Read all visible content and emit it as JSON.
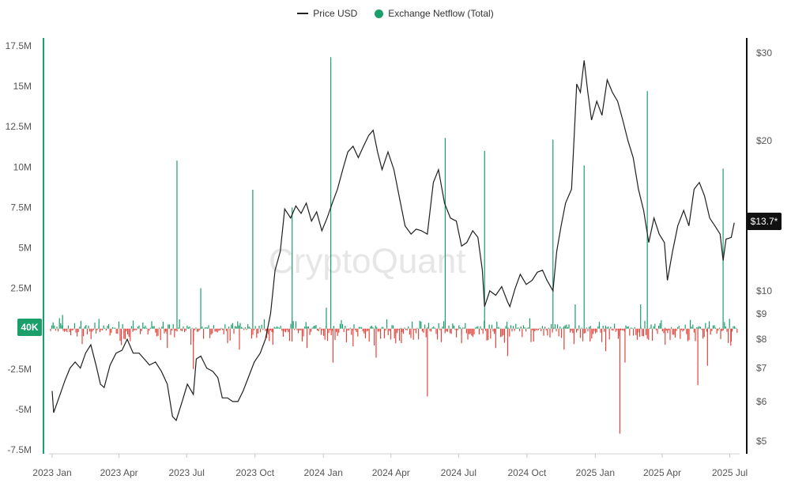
{
  "legend": {
    "price_label": "Price USD",
    "netflow_label": "Exchange Netflow (Total)"
  },
  "watermark": "CryptoQuant",
  "badges": {
    "left_value": "40K",
    "right_value": "$13.7*"
  },
  "colors": {
    "price_line": "#1f1f1f",
    "inflow": "#1a9e6a",
    "outflow": "#e2453c",
    "left_badge": "#1a9e6a",
    "right_badge": "#111111"
  },
  "chart_data": {
    "type": "line+bar",
    "x_ticks": [
      "2023 Jan",
      "2023 Apr",
      "2023 Jul",
      "2023 Oct",
      "2024 Jan",
      "2024 Apr",
      "2024 Jul",
      "2024 Oct",
      "2025 Jan",
      "2025 Apr",
      "2025 Jul"
    ],
    "y_left": {
      "label": "",
      "range": [
        -7500000,
        17500000
      ],
      "ticks": [
        "17.5M",
        "15M",
        "12.5M",
        "10M",
        "7.5M",
        "5M",
        "2.5M",
        "-2.5M",
        "-5M",
        "-7.5M"
      ],
      "tick_values": [
        17500000,
        15000000,
        12500000,
        10000000,
        7500000,
        5000000,
        2500000,
        -2500000,
        -5000000,
        -7500000
      ]
    },
    "y_right": {
      "label": "",
      "scale": "log",
      "range": [
        4.8,
        31
      ],
      "ticks": [
        "$30",
        "$20",
        "$10",
        "$9",
        "$8",
        "$7",
        "$6",
        "$5"
      ],
      "tick_values": [
        30,
        20,
        10,
        9,
        8,
        7,
        6,
        5
      ]
    },
    "series": [
      {
        "name": "Price USD",
        "kind": "line",
        "axis": "right",
        "points": [
          [
            "2023-01-01",
            6.3
          ],
          [
            "2023-01-03",
            5.7
          ],
          [
            "2023-01-10",
            6.1
          ],
          [
            "2023-01-18",
            6.6
          ],
          [
            "2023-01-25",
            7.0
          ],
          [
            "2023-02-01",
            7.2
          ],
          [
            "2023-02-08",
            7.0
          ],
          [
            "2023-02-15",
            7.5
          ],
          [
            "2023-02-22",
            7.8
          ],
          [
            "2023-03-01",
            7.1
          ],
          [
            "2023-03-07",
            6.5
          ],
          [
            "2023-03-12",
            6.4
          ],
          [
            "2023-03-20",
            7.1
          ],
          [
            "2023-03-28",
            7.5
          ],
          [
            "2023-04-05",
            7.6
          ],
          [
            "2023-04-12",
            8.0
          ],
          [
            "2023-04-20",
            7.5
          ],
          [
            "2023-04-28",
            7.5
          ],
          [
            "2023-05-05",
            7.3
          ],
          [
            "2023-05-12",
            7.1
          ],
          [
            "2023-05-20",
            7.2
          ],
          [
            "2023-05-28",
            6.9
          ],
          [
            "2023-06-05",
            6.5
          ],
          [
            "2023-06-12",
            5.6
          ],
          [
            "2023-06-17",
            5.5
          ],
          [
            "2023-06-25",
            6.0
          ],
          [
            "2023-07-02",
            6.5
          ],
          [
            "2023-07-10",
            6.2
          ],
          [
            "2023-07-14",
            7.3
          ],
          [
            "2023-07-20",
            7.4
          ],
          [
            "2023-07-28",
            7.0
          ],
          [
            "2023-08-05",
            6.9
          ],
          [
            "2023-08-12",
            6.7
          ],
          [
            "2023-08-18",
            6.1
          ],
          [
            "2023-08-25",
            6.1
          ],
          [
            "2023-09-01",
            6.0
          ],
          [
            "2023-09-08",
            6.0
          ],
          [
            "2023-09-15",
            6.3
          ],
          [
            "2023-09-22",
            6.7
          ],
          [
            "2023-09-30",
            7.2
          ],
          [
            "2023-10-08",
            7.5
          ],
          [
            "2023-10-15",
            8.0
          ],
          [
            "2023-10-22",
            9.0
          ],
          [
            "2023-10-28",
            11.0
          ],
          [
            "2023-11-04",
            12.0
          ],
          [
            "2023-11-10",
            14.6
          ],
          [
            "2023-11-18",
            14.0
          ],
          [
            "2023-11-25",
            14.8
          ],
          [
            "2023-12-02",
            14.3
          ],
          [
            "2023-12-09",
            15.0
          ],
          [
            "2023-12-16",
            13.8
          ],
          [
            "2023-12-23",
            14.4
          ],
          [
            "2023-12-30",
            13.2
          ],
          [
            "2024-01-06",
            14.0
          ],
          [
            "2024-01-13",
            15.0
          ],
          [
            "2024-01-20",
            16.0
          ],
          [
            "2024-01-27",
            17.5
          ],
          [
            "2024-02-03",
            19.0
          ],
          [
            "2024-02-10",
            19.5
          ],
          [
            "2024-02-17",
            18.5
          ],
          [
            "2024-02-24",
            19.5
          ],
          [
            "2024-03-02",
            20.5
          ],
          [
            "2024-03-08",
            21.0
          ],
          [
            "2024-03-14",
            19.0
          ],
          [
            "2024-03-20",
            17.5
          ],
          [
            "2024-03-28",
            19.0
          ],
          [
            "2024-04-05",
            17.5
          ],
          [
            "2024-04-13",
            15.2
          ],
          [
            "2024-04-20",
            13.5
          ],
          [
            "2024-04-28",
            13.0
          ],
          [
            "2024-05-05",
            13.3
          ],
          [
            "2024-05-12",
            13.2
          ],
          [
            "2024-05-20",
            13.0
          ],
          [
            "2024-05-28",
            16.5
          ],
          [
            "2024-06-04",
            17.5
          ],
          [
            "2024-06-12",
            15.0
          ],
          [
            "2024-06-20",
            14.0
          ],
          [
            "2024-06-28",
            13.8
          ],
          [
            "2024-07-05",
            12.3
          ],
          [
            "2024-07-12",
            12.5
          ],
          [
            "2024-07-20",
            13.2
          ],
          [
            "2024-07-27",
            12.8
          ],
          [
            "2024-08-02",
            11.0
          ],
          [
            "2024-08-05",
            9.3
          ],
          [
            "2024-08-12",
            10.0
          ],
          [
            "2024-08-20",
            9.8
          ],
          [
            "2024-08-28",
            10.2
          ],
          [
            "2024-09-05",
            9.5
          ],
          [
            "2024-09-08",
            9.3
          ],
          [
            "2024-09-15",
            10.1
          ],
          [
            "2024-09-22",
            10.8
          ],
          [
            "2024-09-30",
            10.3
          ],
          [
            "2024-10-08",
            10.5
          ],
          [
            "2024-10-15",
            10.9
          ],
          [
            "2024-10-22",
            11.0
          ],
          [
            "2024-10-28",
            10.5
          ],
          [
            "2024-11-05",
            10.0
          ],
          [
            "2024-11-10",
            12.0
          ],
          [
            "2024-11-16",
            13.5
          ],
          [
            "2024-11-22",
            15.0
          ],
          [
            "2024-11-30",
            16.0
          ],
          [
            "2024-12-04",
            21.0
          ],
          [
            "2024-12-07",
            26.0
          ],
          [
            "2024-12-12",
            25.0
          ],
          [
            "2024-12-17",
            29.0
          ],
          [
            "2024-12-22",
            25.0
          ],
          [
            "2024-12-27",
            22.0
          ],
          [
            "2025-01-03",
            24.0
          ],
          [
            "2025-01-10",
            22.5
          ],
          [
            "2025-01-17",
            26.5
          ],
          [
            "2025-01-24",
            25.0
          ],
          [
            "2025-01-31",
            24.0
          ],
          [
            "2025-02-07",
            22.0
          ],
          [
            "2025-02-14",
            20.0
          ],
          [
            "2025-02-21",
            18.5
          ],
          [
            "2025-02-28",
            16.0
          ],
          [
            "2025-03-07",
            14.5
          ],
          [
            "2025-03-14",
            12.5
          ],
          [
            "2025-03-21",
            14.0
          ],
          [
            "2025-03-28",
            13.0
          ],
          [
            "2025-04-04",
            12.5
          ],
          [
            "2025-04-08",
            10.5
          ],
          [
            "2025-04-15",
            12.0
          ],
          [
            "2025-04-22",
            13.5
          ],
          [
            "2025-04-30",
            14.5
          ],
          [
            "2025-05-07",
            13.5
          ],
          [
            "2025-05-14",
            16.0
          ],
          [
            "2025-05-21",
            16.5
          ],
          [
            "2025-05-28",
            15.5
          ],
          [
            "2025-06-04",
            14.0
          ],
          [
            "2025-06-11",
            13.5
          ],
          [
            "2025-06-18",
            13.0
          ],
          [
            "2025-06-22",
            11.5
          ],
          [
            "2025-06-26",
            12.7
          ],
          [
            "2025-07-03",
            12.8
          ],
          [
            "2025-07-07",
            13.7
          ]
        ]
      },
      {
        "name": "Exchange Netflow (Total)",
        "kind": "bar",
        "axis": "left",
        "spikes": [
          [
            "2023-01-15",
            850000
          ],
          [
            "2023-03-05",
            600000
          ],
          [
            "2023-04-20",
            500000
          ],
          [
            "2023-06-05",
            -1200000
          ],
          [
            "2023-06-18",
            10400000
          ],
          [
            "2023-07-10",
            -2500000
          ],
          [
            "2023-07-20",
            2500000
          ],
          [
            "2023-09-10",
            -1300000
          ],
          [
            "2023-09-28",
            8600000
          ],
          [
            "2023-10-25",
            -1000000
          ],
          [
            "2023-11-20",
            7500000
          ],
          [
            "2023-12-10",
            -1200000
          ],
          [
            "2024-01-05",
            1300000
          ],
          [
            "2024-01-11",
            16800000
          ],
          [
            "2024-01-14",
            -2100000
          ],
          [
            "2024-02-10",
            -1100000
          ],
          [
            "2024-03-12",
            -1800000
          ],
          [
            "2024-04-15",
            -900000
          ],
          [
            "2024-05-20",
            -4200000
          ],
          [
            "2024-06-13",
            11800000
          ],
          [
            "2024-07-05",
            -900000
          ],
          [
            "2024-08-05",
            11000000
          ],
          [
            "2024-08-20",
            -1200000
          ],
          [
            "2024-09-05",
            -1700000
          ],
          [
            "2024-10-10",
            -800000
          ],
          [
            "2024-11-05",
            11700000
          ],
          [
            "2024-11-20",
            -1300000
          ],
          [
            "2024-12-05",
            1500000
          ],
          [
            "2024-12-17",
            10100000
          ],
          [
            "2024-12-25",
            -800000
          ],
          [
            "2025-01-15",
            -1400000
          ],
          [
            "2025-02-03",
            -6500000
          ],
          [
            "2025-02-10",
            -2100000
          ],
          [
            "2025-03-03",
            1500000
          ],
          [
            "2025-03-12",
            14700000
          ],
          [
            "2025-04-05",
            -1000000
          ],
          [
            "2025-05-19",
            -3500000
          ],
          [
            "2025-06-01",
            -2300000
          ],
          [
            "2025-06-22",
            9900000
          ],
          [
            "2025-07-03",
            -800000
          ]
        ]
      }
    ],
    "grid": false,
    "legend_position": "top-center"
  }
}
